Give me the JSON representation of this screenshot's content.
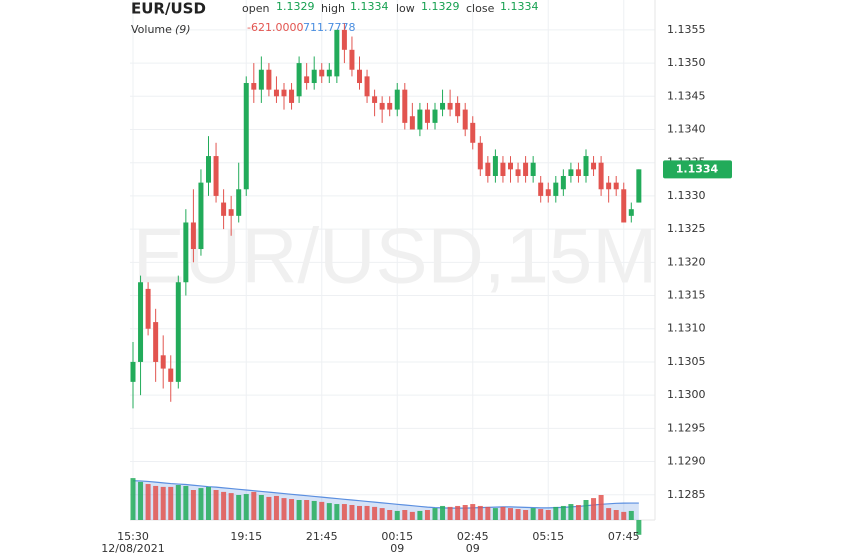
{
  "chart_data": {
    "type": "candlestick",
    "title": "EUR/USD",
    "watermark": "EUR/USD,15M",
    "legend": {
      "open_label": "open",
      "open": "1.1329",
      "high_label": "high",
      "high": "1.1334",
      "low_label": "low",
      "low": "1.1329",
      "close_label": "close",
      "close": "1.1334",
      "volume_label": "Volume",
      "volume_period": "(9)",
      "volume_value": "-621.0000",
      "volume_ma_value": "711.7778"
    },
    "categories": [
      "15:30",
      null,
      null,
      null,
      null,
      null,
      null,
      null,
      null,
      null,
      null,
      null,
      null,
      null,
      null,
      "19:15",
      null,
      null,
      null,
      null,
      null,
      null,
      null,
      null,
      null,
      "21:45",
      null,
      null,
      null,
      null,
      null,
      null,
      null,
      null,
      null,
      "00:15",
      null,
      null,
      null,
      null,
      null,
      null,
      null,
      null,
      null,
      "02:45",
      null,
      null,
      null,
      null,
      null,
      null,
      null,
      null,
      null,
      "05:15",
      null,
      null,
      null,
      null,
      null,
      null,
      null,
      null,
      null,
      "07:45",
      null,
      null
    ],
    "date_labels": [
      "12/08/2021",
      null,
      null,
      null,
      null,
      null,
      null,
      null,
      null,
      null,
      null,
      null,
      null,
      null,
      null,
      null,
      null,
      null,
      null,
      null,
      null,
      null,
      null,
      null,
      null,
      null,
      null,
      null,
      null,
      null,
      null,
      null,
      null,
      null,
      null,
      "09",
      null,
      null,
      null,
      null,
      null,
      null,
      null,
      null,
      null,
      "09",
      null,
      null,
      null,
      null,
      null,
      null,
      null,
      null,
      null,
      null,
      null,
      null,
      null,
      null,
      null,
      null,
      null,
      null,
      null,
      null,
      null,
      null
    ],
    "open": [
      1.1302,
      1.1305,
      1.1316,
      1.1311,
      1.1306,
      1.1304,
      1.1302,
      1.1317,
      1.1326,
      1.1322,
      1.1332,
      1.1336,
      1.1329,
      1.1328,
      1.1327,
      1.1331,
      1.1347,
      1.1346,
      1.1349,
      1.1346,
      1.1346,
      1.1346,
      1.1345,
      1.1348,
      1.1347,
      1.1349,
      1.1348,
      1.1348,
      1.1355,
      1.1352,
      1.1349,
      1.1348,
      1.1345,
      1.1344,
      1.1344,
      1.1343,
      1.1346,
      1.1342,
      1.134,
      1.1343,
      1.1341,
      1.1343,
      1.1344,
      1.1344,
      1.1343,
      1.1341,
      1.1338,
      1.1335,
      1.1333,
      1.1335,
      1.1335,
      1.1334,
      1.1335,
      1.1333,
      1.1332,
      1.1331,
      1.133,
      1.1331,
      1.1333,
      1.1334,
      1.1333,
      1.1335,
      1.1335,
      1.1332,
      1.1332,
      1.1331,
      1.1327,
      1.1329
    ],
    "high": [
      1.1308,
      1.1318,
      1.1317,
      1.1313,
      1.1309,
      1.1306,
      1.1318,
      1.1328,
      1.1331,
      1.1334,
      1.1339,
      1.1338,
      1.1331,
      1.133,
      1.1335,
      1.1348,
      1.135,
      1.1351,
      1.135,
      1.1348,
      1.1347,
      1.1347,
      1.1351,
      1.135,
      1.1351,
      1.135,
      1.135,
      1.1355,
      1.1356,
      1.1354,
      1.1351,
      1.1349,
      1.1346,
      1.1345,
      1.1345,
      1.1347,
      1.1347,
      1.1344,
      1.1344,
      1.1344,
      1.1344,
      1.1346,
      1.1346,
      1.1345,
      1.1344,
      1.1342,
      1.1339,
      1.1336,
      1.1337,
      1.1336,
      1.1336,
      1.1335,
      1.1336,
      1.1336,
      1.1333,
      1.1332,
      1.1333,
      1.1334,
      1.1335,
      1.1335,
      1.1337,
      1.1336,
      1.1336,
      1.1333,
      1.1333,
      1.1332,
      1.1329,
      1.1334
    ],
    "low": [
      1.1298,
      1.13,
      1.1309,
      1.1302,
      1.1301,
      1.1299,
      1.1301,
      1.1315,
      1.132,
      1.1321,
      1.133,
      1.1329,
      1.1325,
      1.1324,
      1.1326,
      1.133,
      1.1344,
      1.1344,
      1.1345,
      1.1344,
      1.1343,
      1.1343,
      1.1344,
      1.1346,
      1.1346,
      1.1347,
      1.1347,
      1.1347,
      1.135,
      1.1348,
      1.1346,
      1.1344,
      1.1342,
      1.1341,
      1.1342,
      1.1342,
      1.134,
      1.134,
      1.1339,
      1.134,
      1.134,
      1.1342,
      1.1342,
      1.1341,
      1.1339,
      1.1337,
      1.1333,
      1.1332,
      1.1332,
      1.1332,
      1.1332,
      1.1332,
      1.1332,
      1.1332,
      1.1329,
      1.1329,
      1.1329,
      1.133,
      1.1332,
      1.1332,
      1.1332,
      1.1333,
      1.133,
      1.1329,
      1.133,
      1.1326,
      1.1326,
      1.1329
    ],
    "close": [
      1.1305,
      1.1317,
      1.131,
      1.1305,
      1.1304,
      1.1302,
      1.1317,
      1.1326,
      1.1322,
      1.1332,
      1.1336,
      1.133,
      1.1327,
      1.1327,
      1.1331,
      1.1347,
      1.1346,
      1.1349,
      1.1346,
      1.1345,
      1.1345,
      1.1344,
      1.135,
      1.1347,
      1.1349,
      1.1348,
      1.1349,
      1.1355,
      1.1352,
      1.1349,
      1.1347,
      1.1345,
      1.1344,
      1.1343,
      1.1343,
      1.1346,
      1.1341,
      1.134,
      1.1343,
      1.1341,
      1.1343,
      1.1344,
      1.1343,
      1.1342,
      1.134,
      1.1338,
      1.1334,
      1.1333,
      1.1336,
      1.1333,
      1.1334,
      1.1333,
      1.1333,
      1.1335,
      1.133,
      1.133,
      1.1332,
      1.1333,
      1.1334,
      1.1333,
      1.1336,
      1.1334,
      1.1331,
      1.1331,
      1.1331,
      1.1326,
      1.1328,
      1.1334
    ],
    "up_color": "#22ab5a",
    "down_color": "#e2544f",
    "volume": {
      "values": [
        1760,
        1600,
        1510,
        1430,
        1390,
        1390,
        1470,
        1430,
        1260,
        1340,
        1390,
        1260,
        1180,
        1130,
        1050,
        1090,
        1180,
        1050,
        970,
        1010,
        920,
        880,
        840,
        840,
        800,
        760,
        710,
        670,
        670,
        630,
        590,
        590,
        550,
        500,
        420,
        380,
        420,
        340,
        380,
        420,
        500,
        590,
        550,
        590,
        630,
        670,
        590,
        550,
        500,
        550,
        500,
        460,
        420,
        500,
        460,
        420,
        550,
        590,
        670,
        630,
        840,
        920,
        1050,
        500,
        420,
        340,
        380,
        -621
      ]
    },
    "volume_ma": {
      "values": [
        1650,
        1640,
        1620,
        1590,
        1560,
        1530,
        1510,
        1490,
        1460,
        1430,
        1400,
        1380,
        1350,
        1320,
        1290,
        1260,
        1230,
        1200,
        1170,
        1140,
        1110,
        1080,
        1050,
        1020,
        990,
        960,
        930,
        900,
        870,
        840,
        810,
        780,
        750,
        720,
        690,
        660,
        630,
        600,
        570,
        540,
        520,
        510,
        500,
        500,
        500,
        510,
        520,
        530,
        540,
        550,
        550,
        540,
        530,
        520,
        510,
        510,
        520,
        530,
        550,
        570,
        600,
        630,
        660,
        680,
        700,
        710,
        712,
        711.7778
      ],
      "color": "#5b8fe0"
    },
    "ylim": [
      1.12812,
      1.13595
    ],
    "yticks": [
      1.1285,
      {
        "value": 1.129,
        "label": "1.1290"
      },
      1.1295,
      {
        "value": 1.13,
        "label": "1.1300"
      },
      1.1305,
      {
        "value": 1.131,
        "label": "1.1310"
      },
      1.1315,
      {
        "value": 1.132,
        "label": "1.1320"
      },
      1.1325,
      {
        "value": 1.133,
        "label": "1.1330"
      },
      1.1335,
      {
        "value": 1.134,
        "label": "1.1340"
      },
      1.1345,
      {
        "value": 1.135,
        "label": "1.1350"
      },
      1.1355
    ],
    "grid": true
  }
}
